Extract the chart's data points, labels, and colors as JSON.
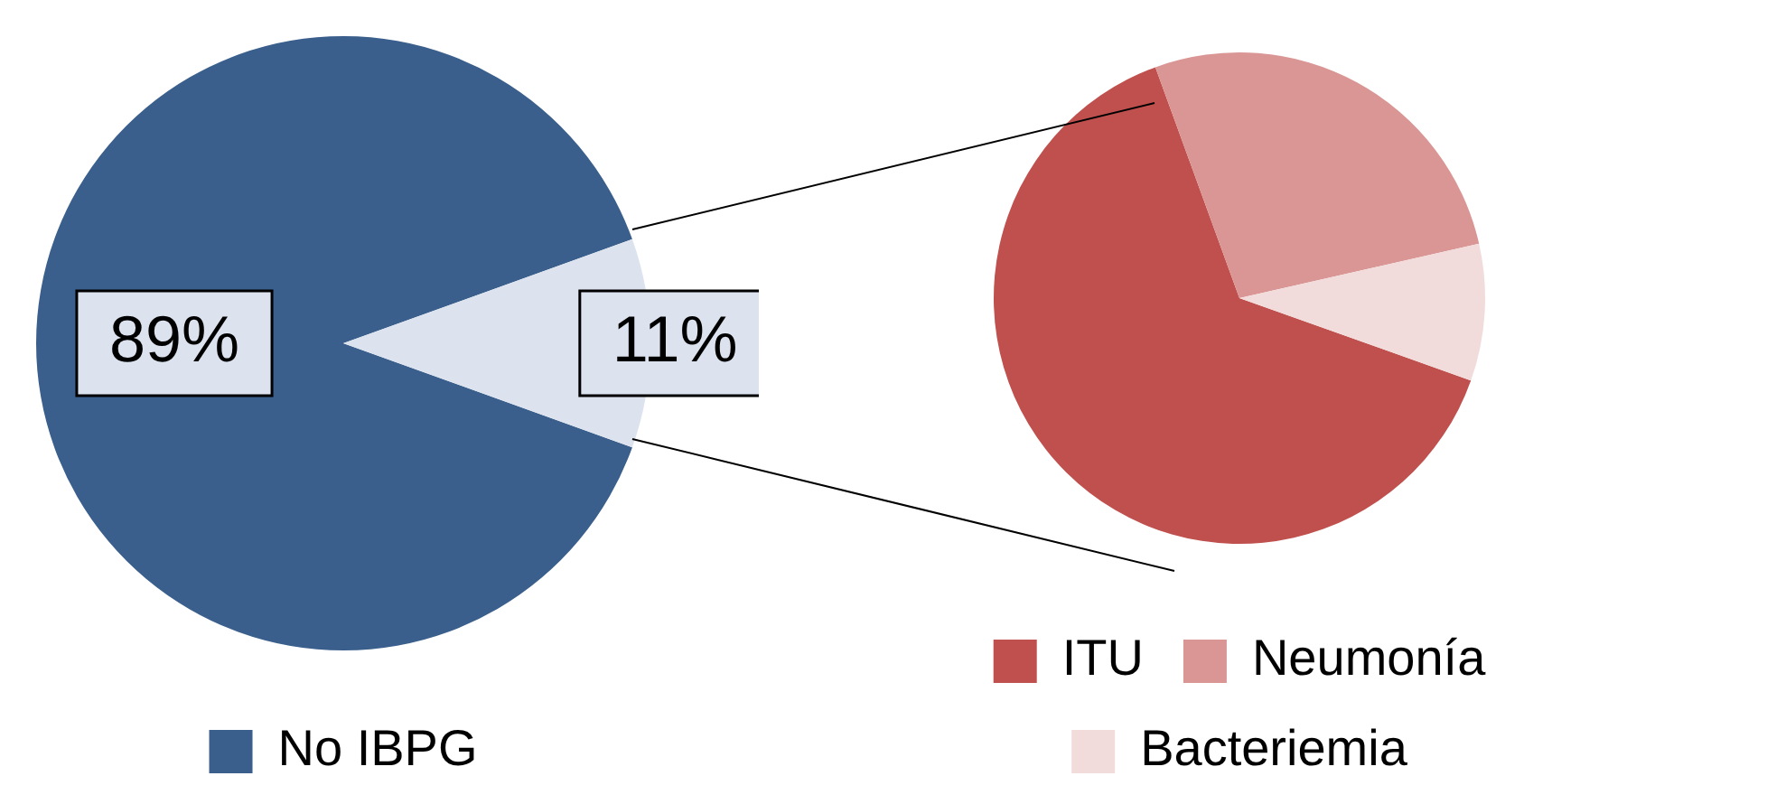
{
  "chart_data": [
    {
      "type": "pie",
      "categories": [
        "No IBPG",
        null
      ],
      "values": [
        89,
        11
      ],
      "value_labels": [
        "89%",
        "11%"
      ],
      "colors": [
        "#3a5f8c",
        "#dce3ef"
      ],
      "legend": "bottom"
    },
    {
      "type": "pie",
      "categories": [
        "ITU",
        "Neumonía",
        "Bacteriemia"
      ],
      "values": [
        64,
        27,
        9
      ],
      "colors": [
        "#c0504d",
        "#d99694",
        "#f2dcdb"
      ],
      "legend": "bottom"
    }
  ]
}
